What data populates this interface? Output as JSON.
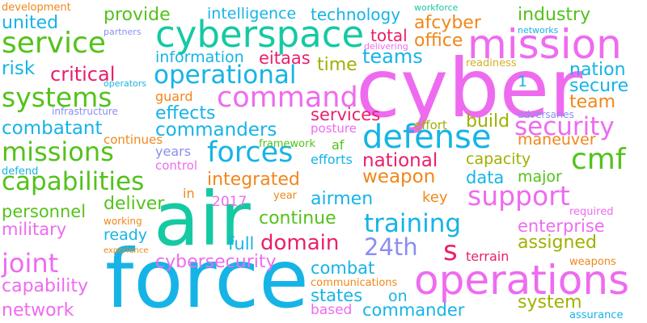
{
  "palette": {
    "magenta": "#ee6bf0",
    "cyan": "#16b4e6",
    "teal": "#15c9a3",
    "green": "#54c21b",
    "olive": "#9fb100",
    "orange": "#f0871a",
    "crimson": "#ea1f6a",
    "purple": "#8a8ef0",
    "gold": "#d2b02a",
    "lime": "#82c91e"
  },
  "words": [
    {
      "text": "cyber",
      "color": "magenta"
    },
    {
      "text": "force",
      "color": "cyan"
    },
    {
      "text": "air",
      "color": "teal"
    },
    {
      "text": "mission",
      "color": "magenta"
    },
    {
      "text": "operations",
      "color": "magenta"
    },
    {
      "text": "cyberspace",
      "color": "teal"
    },
    {
      "text": "service",
      "color": "green"
    },
    {
      "text": "defense",
      "color": "cyan"
    },
    {
      "text": "command",
      "color": "magenta"
    },
    {
      "text": "operational",
      "color": "cyan"
    },
    {
      "text": "systems",
      "color": "green"
    },
    {
      "text": "missions",
      "color": "green"
    },
    {
      "text": "capabilities",
      "color": "green"
    },
    {
      "text": "forces",
      "color": "cyan"
    },
    {
      "text": "training",
      "color": "cyan"
    },
    {
      "text": "support",
      "color": "magenta"
    },
    {
      "text": "security",
      "color": "magenta"
    },
    {
      "text": "cmf",
      "color": "green"
    },
    {
      "text": "joint",
      "color": "magenta"
    },
    {
      "text": "domain",
      "color": "crimson"
    },
    {
      "text": "24th",
      "color": "purple"
    },
    {
      "text": "s",
      "color": "crimson"
    },
    {
      "text": "combatant",
      "color": "cyan"
    },
    {
      "text": "commanders",
      "color": "cyan"
    },
    {
      "text": "effects",
      "color": "cyan"
    },
    {
      "text": "teams",
      "color": "cyan"
    },
    {
      "text": "provide",
      "color": "green"
    },
    {
      "text": "united",
      "color": "cyan"
    },
    {
      "text": "risk",
      "color": "cyan"
    },
    {
      "text": "critical",
      "color": "crimson"
    },
    {
      "text": "intelligence",
      "color": "cyan"
    },
    {
      "text": "technology",
      "color": "cyan"
    },
    {
      "text": "afcyber",
      "color": "orange"
    },
    {
      "text": "total",
      "color": "crimson"
    },
    {
      "text": "office",
      "color": "orange"
    },
    {
      "text": "industry",
      "color": "green"
    },
    {
      "text": "information",
      "color": "cyan"
    },
    {
      "text": "eitaas",
      "color": "crimson"
    },
    {
      "text": "time",
      "color": "olive"
    },
    {
      "text": "nation",
      "color": "cyan"
    },
    {
      "text": "secure",
      "color": "cyan"
    },
    {
      "text": "team",
      "color": "orange"
    },
    {
      "text": "services",
      "color": "crimson"
    },
    {
      "text": "posture",
      "color": "magenta"
    },
    {
      "text": "build",
      "color": "olive"
    },
    {
      "text": "effort",
      "color": "olive"
    },
    {
      "text": "maneuver",
      "color": "orange"
    },
    {
      "text": "national",
      "color": "crimson"
    },
    {
      "text": "capacity",
      "color": "olive"
    },
    {
      "text": "weapon",
      "color": "orange"
    },
    {
      "text": "data",
      "color": "cyan"
    },
    {
      "text": "major",
      "color": "green"
    },
    {
      "text": "integrated",
      "color": "orange"
    },
    {
      "text": "airmen",
      "color": "cyan"
    },
    {
      "text": "key",
      "color": "orange"
    },
    {
      "text": "deliver",
      "color": "green"
    },
    {
      "text": "personnel",
      "color": "green"
    },
    {
      "text": "military",
      "color": "magenta"
    },
    {
      "text": "continue",
      "color": "green"
    },
    {
      "text": "enterprise",
      "color": "magenta"
    },
    {
      "text": "assigned",
      "color": "olive"
    },
    {
      "text": "ready",
      "color": "cyan"
    },
    {
      "text": "full",
      "color": "cyan"
    },
    {
      "text": "cybersecurity",
      "color": "magenta"
    },
    {
      "text": "terrain",
      "color": "crimson"
    },
    {
      "text": "combat",
      "color": "cyan"
    },
    {
      "text": "capability",
      "color": "magenta"
    },
    {
      "text": "network",
      "color": "magenta"
    },
    {
      "text": "states",
      "color": "cyan"
    },
    {
      "text": "on",
      "color": "cyan"
    },
    {
      "text": "commander",
      "color": "cyan"
    },
    {
      "text": "based",
      "color": "magenta"
    },
    {
      "text": "system",
      "color": "olive"
    },
    {
      "text": "assurance",
      "color": "cyan"
    },
    {
      "text": "weapons",
      "color": "orange"
    },
    {
      "text": "communications",
      "color": "orange"
    },
    {
      "text": "development",
      "color": "orange"
    },
    {
      "text": "partners",
      "color": "purple"
    },
    {
      "text": "delivering",
      "color": "magenta"
    },
    {
      "text": "workforce",
      "color": "teal"
    },
    {
      "text": "networks",
      "color": "cyan"
    },
    {
      "text": "readiness",
      "color": "gold"
    },
    {
      "text": "operators",
      "color": "cyan"
    },
    {
      "text": "infrastructure",
      "color": "purple"
    },
    {
      "text": "guard",
      "color": "orange"
    },
    {
      "text": "adversaries",
      "color": "purple"
    },
    {
      "text": "continues",
      "color": "orange"
    },
    {
      "text": "years",
      "color": "purple"
    },
    {
      "text": "control",
      "color": "magenta"
    },
    {
      "text": "framework",
      "color": "green"
    },
    {
      "text": "af",
      "color": "green"
    },
    {
      "text": "efforts",
      "color": "cyan"
    },
    {
      "text": "defend",
      "color": "cyan"
    },
    {
      "text": "in",
      "color": "orange"
    },
    {
      "text": "2017",
      "color": "magenta"
    },
    {
      "text": "year",
      "color": "orange"
    },
    {
      "text": "required",
      "color": "magenta"
    },
    {
      "text": "working",
      "color": "orange"
    },
    {
      "text": "experience",
      "color": "orange"
    },
    {
      "text": "1",
      "color": "cyan"
    }
  ]
}
